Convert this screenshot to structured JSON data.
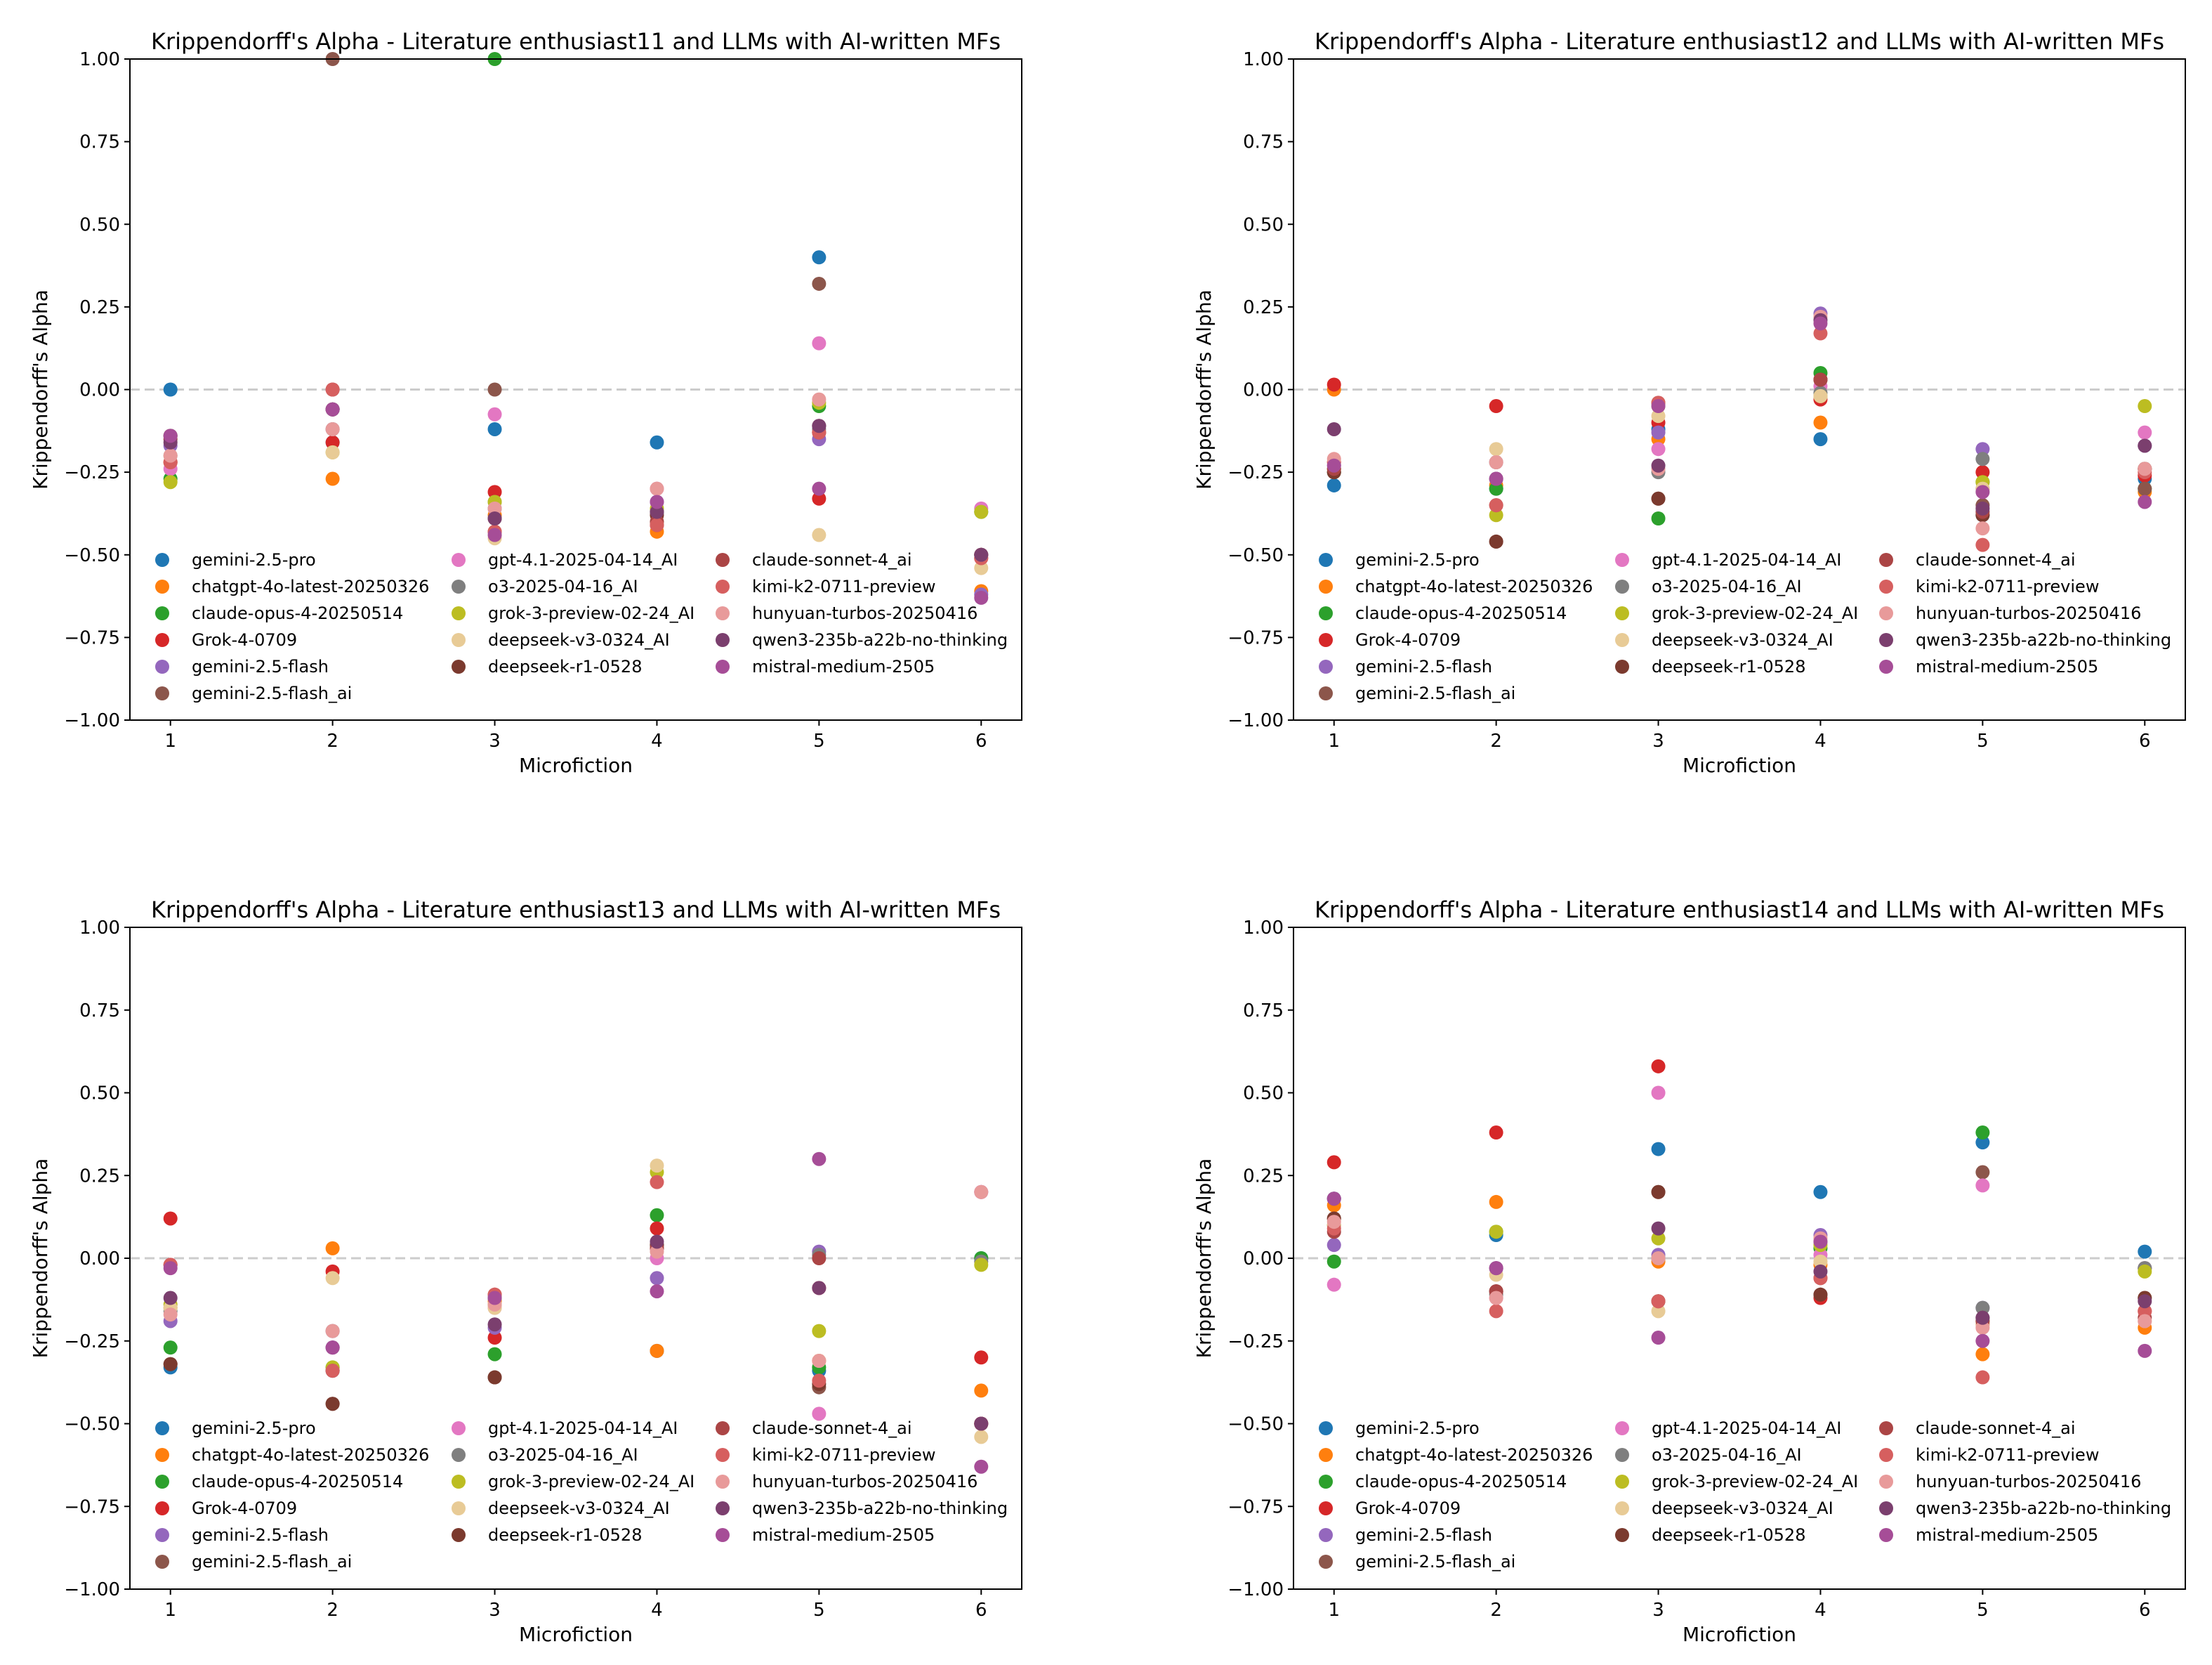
{
  "series_names": [
    "gemini-2.5-pro",
    "chatgpt-4o-latest-20250326",
    "claude-opus-4-20250514",
    "Grok-4-0709",
    "gemini-2.5-flash",
    "gemini-2.5-flash_ai",
    "gpt-4.1-2025-04-14_AI",
    "o3-2025-04-16_AI",
    "grok-3-preview-02-24_AI",
    "deepseek-v3-0324_AI",
    "deepseek-r1-0528",
    "claude-sonnet-4_ai",
    "kimi-k2-0711-preview",
    "hunyuan-turbos-20250416",
    "qwen3-235b-a22b-no-thinking",
    "mistral-medium-2505"
  ],
  "series_colors": [
    "#1f77b4",
    "#ff7f0e",
    "#2ca02c",
    "#d62728",
    "#9467bd",
    "#8c564b",
    "#e377c2",
    "#7f7f7f",
    "#bcbd22",
    "#e8cb96",
    "#7b3a2e",
    "#ab4545",
    "#d65f5f",
    "#e89a9a",
    "#7b3f6e",
    "#a64d97"
  ],
  "chart_data": [
    {
      "type": "scatter",
      "title": "Krippendorff's Alpha - Literature enthusiast11 and LLMs with AI-written MFs",
      "xlabel": "Microfiction",
      "ylabel": "Krippendorff's Alpha",
      "x": [
        1,
        2,
        3,
        4,
        5,
        6
      ],
      "xlim": [
        0.75,
        6.25
      ],
      "ylim": [
        -1,
        1
      ],
      "xticks": [
        "1",
        "2",
        "3",
        "4",
        "5",
        "6"
      ],
      "yticks": [
        "−1.00",
        "−0.75",
        "−0.50",
        "−0.25",
        "0.00",
        "0.25",
        "0.50",
        "0.75",
        "1.00"
      ],
      "reference_line": 0,
      "legend_placement": "lower-left, 3 columns",
      "series": [
        {
          "name": "gemini-2.5-pro",
          "values": [
            0.0,
            -0.16,
            -0.12,
            -0.16,
            0.4,
            -0.5
          ]
        },
        {
          "name": "chatgpt-4o-latest-20250326",
          "values": [
            -0.22,
            -0.27,
            -0.38,
            -0.43,
            -0.13,
            -0.61
          ]
        },
        {
          "name": "claude-opus-4-20250514",
          "values": [
            -0.27,
            -0.06,
            1.0,
            -0.37,
            -0.05,
            -0.37
          ]
        },
        {
          "name": "Grok-4-0709",
          "values": [
            -0.22,
            -0.16,
            -0.31,
            -0.41,
            -0.33,
            -0.51
          ]
        },
        {
          "name": "gemini-2.5-flash",
          "values": [
            -0.17,
            -0.06,
            -0.36,
            -0.34,
            -0.15,
            -0.62
          ]
        },
        {
          "name": "gemini-2.5-flash_ai",
          "values": [
            -0.14,
            1.0,
            0.0,
            -0.37,
            0.32,
            -0.5
          ]
        },
        {
          "name": "gpt-4.1-2025-04-14_AI",
          "values": [
            -0.24,
            -0.12,
            -0.075,
            -0.3,
            0.14,
            -0.36
          ]
        },
        {
          "name": "o3-2025-04-16_AI",
          "values": [
            -0.2,
            -0.12,
            -0.34,
            -0.37,
            -0.12,
            -0.5
          ]
        },
        {
          "name": "grok-3-preview-02-24_AI",
          "values": [
            -0.28,
            -0.19,
            -0.34,
            -0.36,
            -0.04,
            -0.37
          ]
        },
        {
          "name": "deepseek-v3-0324_AI",
          "values": [
            -0.2,
            -0.19,
            -0.45,
            -0.4,
            -0.44,
            -0.54
          ]
        },
        {
          "name": "deepseek-r1-0528",
          "values": [
            -0.14,
            -0.06,
            -0.39,
            -0.38,
            -0.11,
            -0.5
          ]
        },
        {
          "name": "claude-sonnet-4_ai",
          "values": [
            -0.15,
            0.0,
            -0.43,
            -0.4,
            -0.13,
            -0.5
          ]
        },
        {
          "name": "kimi-k2-0711-preview",
          "values": [
            -0.22,
            0.0,
            -0.43,
            -0.41,
            -0.13,
            -0.51
          ]
        },
        {
          "name": "hunyuan-turbos-20250416",
          "values": [
            -0.2,
            -0.12,
            -0.36,
            -0.3,
            -0.03,
            -0.5
          ]
        },
        {
          "name": "qwen3-235b-a22b-no-thinking",
          "values": [
            -0.16,
            -0.06,
            -0.39,
            -0.37,
            -0.11,
            -0.5
          ]
        },
        {
          "name": "mistral-medium-2505",
          "values": [
            -0.14,
            -0.06,
            -0.44,
            -0.34,
            -0.3,
            -0.63
          ]
        }
      ]
    },
    {
      "type": "scatter",
      "title": "Krippendorff's Alpha - Literature enthusiast12 and LLMs with AI-written MFs",
      "xlabel": "Microfiction",
      "ylabel": "Krippendorff's Alpha",
      "x": [
        1,
        2,
        3,
        4,
        5,
        6
      ],
      "xlim": [
        0.75,
        6.25
      ],
      "ylim": [
        -1,
        1
      ],
      "xticks": [
        "1",
        "2",
        "3",
        "4",
        "5",
        "6"
      ],
      "yticks": [
        "−1.00",
        "−0.75",
        "−0.50",
        "−0.25",
        "0.00",
        "0.25",
        "0.50",
        "0.75",
        "1.00"
      ],
      "reference_line": 0,
      "legend_placement": "lower-left, 3 columns",
      "series": [
        {
          "name": "gemini-2.5-pro",
          "values": [
            -0.29,
            -0.3,
            -0.12,
            -0.15,
            -0.38,
            -0.27
          ]
        },
        {
          "name": "chatgpt-4o-latest-20250326",
          "values": [
            0.0,
            -0.29,
            -0.15,
            -0.1,
            -0.3,
            -0.31
          ]
        },
        {
          "name": "claude-opus-4-20250514",
          "values": [
            -0.25,
            -0.3,
            -0.39,
            0.05,
            -0.28,
            -0.3
          ]
        },
        {
          "name": "Grok-4-0709",
          "values": [
            0.015,
            -0.05,
            -0.1,
            -0.03,
            -0.25,
            -0.26
          ]
        },
        {
          "name": "gemini-2.5-flash",
          "values": [
            -0.23,
            -0.27,
            -0.13,
            0.23,
            -0.18,
            -0.17
          ]
        },
        {
          "name": "gemini-2.5-flash_ai",
          "values": [
            -0.25,
            -0.46,
            -0.33,
            0.03,
            -0.35,
            -0.3
          ]
        },
        {
          "name": "gpt-4.1-2025-04-14_AI",
          "values": [
            -0.22,
            -0.22,
            -0.18,
            0.01,
            -0.3,
            -0.13
          ]
        },
        {
          "name": "o3-2025-04-16_AI",
          "values": [
            -0.24,
            -0.22,
            -0.25,
            -0.01,
            -0.21,
            -0.24
          ]
        },
        {
          "name": "grok-3-preview-02-24_AI",
          "values": [
            -0.24,
            -0.38,
            -0.05,
            -0.02,
            -0.28,
            -0.05
          ]
        },
        {
          "name": "deepseek-v3-0324_AI",
          "values": [
            -0.22,
            -0.18,
            -0.08,
            -0.02,
            -0.3,
            -0.24
          ]
        },
        {
          "name": "deepseek-r1-0528",
          "values": [
            -0.25,
            -0.46,
            -0.33,
            0.03,
            -0.38,
            -0.24
          ]
        },
        {
          "name": "claude-sonnet-4_ai",
          "values": [
            -0.24,
            -0.35,
            -0.04,
            0.03,
            -0.37,
            -0.24
          ]
        },
        {
          "name": "kimi-k2-0711-preview",
          "values": [
            -0.22,
            -0.35,
            -0.04,
            0.17,
            -0.47,
            -0.25
          ]
        },
        {
          "name": "hunyuan-turbos-20250416",
          "values": [
            -0.21,
            -0.22,
            -0.24,
            0.22,
            -0.42,
            -0.24
          ]
        },
        {
          "name": "qwen3-235b-a22b-no-thinking",
          "values": [
            -0.12,
            -0.27,
            -0.23,
            0.21,
            -0.36,
            -0.17
          ]
        },
        {
          "name": "mistral-medium-2505",
          "values": [
            -0.23,
            -0.27,
            -0.05,
            0.2,
            -0.31,
            -0.34
          ]
        }
      ]
    },
    {
      "type": "scatter",
      "title": "Krippendorff's Alpha - Literature enthusiast13 and LLMs with AI-written MFs",
      "xlabel": "Microfiction",
      "ylabel": "Krippendorff's Alpha",
      "x": [
        1,
        2,
        3,
        4,
        5,
        6
      ],
      "xlim": [
        0.75,
        6.25
      ],
      "ylim": [
        -1,
        1
      ],
      "xticks": [
        "1",
        "2",
        "3",
        "4",
        "5",
        "6"
      ],
      "yticks": [
        "−1.00",
        "−0.75",
        "−0.50",
        "−0.25",
        "0.00",
        "0.25",
        "0.50",
        "0.75",
        "1.00"
      ],
      "reference_line": 0,
      "legend_placement": "lower-left, 3 columns",
      "series": [
        {
          "name": "gemini-2.5-pro",
          "values": [
            -0.33,
            -0.34,
            -0.12,
            -0.28,
            -0.34,
            0.0
          ]
        },
        {
          "name": "chatgpt-4o-latest-20250326",
          "values": [
            -0.15,
            0.03,
            -0.13,
            -0.28,
            -0.31,
            -0.4
          ]
        },
        {
          "name": "claude-opus-4-20250514",
          "values": [
            -0.27,
            -0.33,
            -0.29,
            0.13,
            -0.33,
            0.0
          ]
        },
        {
          "name": "Grok-4-0709",
          "values": [
            0.12,
            -0.04,
            -0.24,
            0.09,
            -0.09,
            -0.3
          ]
        },
        {
          "name": "gemini-2.5-flash",
          "values": [
            -0.19,
            -0.27,
            -0.21,
            -0.06,
            0.02,
            0.2
          ]
        },
        {
          "name": "gemini-2.5-flash_ai",
          "values": [
            -0.32,
            -0.44,
            -0.36,
            0.04,
            -0.39,
            -0.5
          ]
        },
        {
          "name": "gpt-4.1-2025-04-14_AI",
          "values": [
            -0.02,
            -0.22,
            -0.15,
            0.0,
            -0.47,
            0.2
          ]
        },
        {
          "name": "o3-2025-04-16_AI",
          "values": [
            -0.16,
            -0.22,
            -0.12,
            0.03,
            0.01,
            -0.01
          ]
        },
        {
          "name": "grok-3-preview-02-24_AI",
          "values": [
            -0.14,
            -0.33,
            -0.14,
            0.26,
            -0.22,
            -0.02
          ]
        },
        {
          "name": "deepseek-v3-0324_AI",
          "values": [
            -0.15,
            -0.06,
            -0.15,
            0.28,
            -0.31,
            -0.54
          ]
        },
        {
          "name": "deepseek-r1-0528",
          "values": [
            -0.32,
            -0.44,
            -0.36,
            0.04,
            -0.38,
            -0.5
          ]
        },
        {
          "name": "claude-sonnet-4_ai",
          "values": [
            -0.02,
            -0.34,
            -0.11,
            0.03,
            0.0,
            -0.5
          ]
        },
        {
          "name": "kimi-k2-0711-preview",
          "values": [
            -0.02,
            -0.34,
            -0.11,
            0.23,
            -0.37,
            -0.5
          ]
        },
        {
          "name": "hunyuan-turbos-20250416",
          "values": [
            -0.17,
            -0.22,
            -0.14,
            0.02,
            -0.31,
            0.2
          ]
        },
        {
          "name": "qwen3-235b-a22b-no-thinking",
          "values": [
            -0.12,
            -0.27,
            -0.2,
            0.05,
            -0.09,
            -0.5
          ]
        },
        {
          "name": "mistral-medium-2505",
          "values": [
            -0.03,
            -0.27,
            -0.12,
            -0.1,
            0.3,
            -0.63
          ]
        }
      ]
    },
    {
      "type": "scatter",
      "title": "Krippendorff's Alpha - Literature enthusiast14 and LLMs with AI-written MFs",
      "xlabel": "Microfiction",
      "ylabel": "Krippendorff's Alpha",
      "x": [
        1,
        2,
        3,
        4,
        5,
        6
      ],
      "xlim": [
        0.75,
        6.25
      ],
      "ylim": [
        -1,
        1
      ],
      "xticks": [
        "1",
        "2",
        "3",
        "4",
        "5",
        "6"
      ],
      "yticks": [
        "−1.00",
        "−0.75",
        "−0.50",
        "−0.25",
        "0.00",
        "0.25",
        "0.50",
        "0.75",
        "1.00"
      ],
      "reference_line": 0,
      "legend_placement": "lower-left, 3 columns",
      "series": [
        {
          "name": "gemini-2.5-pro",
          "values": [
            0.18,
            0.07,
            0.33,
            0.2,
            0.35,
            0.02
          ]
        },
        {
          "name": "chatgpt-4o-latest-20250326",
          "values": [
            0.16,
            0.17,
            -0.01,
            -0.02,
            -0.29,
            -0.21
          ]
        },
        {
          "name": "claude-opus-4-20250514",
          "values": [
            -0.01,
            0.08,
            -0.13,
            0.03,
            0.38,
            -0.03
          ]
        },
        {
          "name": "Grok-4-0709",
          "values": [
            0.29,
            0.38,
            0.58,
            -0.12,
            -0.2,
            -0.16
          ]
        },
        {
          "name": "gemini-2.5-flash",
          "values": [
            0.04,
            -0.03,
            0.01,
            0.07,
            -0.15,
            -0.03
          ]
        },
        {
          "name": "gemini-2.5-flash_ai",
          "values": [
            0.12,
            -0.1,
            0.2,
            -0.11,
            0.26,
            -0.12
          ]
        },
        {
          "name": "gpt-4.1-2025-04-14_AI",
          "values": [
            -0.08,
            -0.12,
            0.5,
            0.01,
            0.22,
            -0.03
          ]
        },
        {
          "name": "o3-2025-04-16_AI",
          "values": [
            0.1,
            -0.11,
            0.0,
            0.05,
            -0.15,
            -0.03
          ]
        },
        {
          "name": "grok-3-preview-02-24_AI",
          "values": [
            0.1,
            0.08,
            0.06,
            0.04,
            -0.19,
            -0.04
          ]
        },
        {
          "name": "deepseek-v3-0324_AI",
          "values": [
            0.1,
            -0.05,
            -0.16,
            -0.01,
            -0.2,
            -0.19
          ]
        },
        {
          "name": "deepseek-r1-0528",
          "values": [
            0.12,
            -0.1,
            0.2,
            -0.11,
            -0.18,
            -0.12
          ]
        },
        {
          "name": "claude-sonnet-4_ai",
          "values": [
            0.08,
            -0.1,
            -0.13,
            -0.06,
            -0.19,
            -0.18
          ]
        },
        {
          "name": "kimi-k2-0711-preview",
          "values": [
            0.09,
            -0.16,
            -0.13,
            -0.06,
            -0.36,
            -0.16
          ]
        },
        {
          "name": "hunyuan-turbos-20250416",
          "values": [
            0.11,
            -0.12,
            0.0,
            0.06,
            -0.21,
            -0.19
          ]
        },
        {
          "name": "qwen3-235b-a22b-no-thinking",
          "values": [
            0.18,
            -0.03,
            0.09,
            -0.04,
            -0.18,
            -0.13
          ]
        },
        {
          "name": "mistral-medium-2505",
          "values": [
            0.18,
            -0.03,
            -0.24,
            0.05,
            -0.25,
            -0.28
          ]
        }
      ]
    }
  ]
}
